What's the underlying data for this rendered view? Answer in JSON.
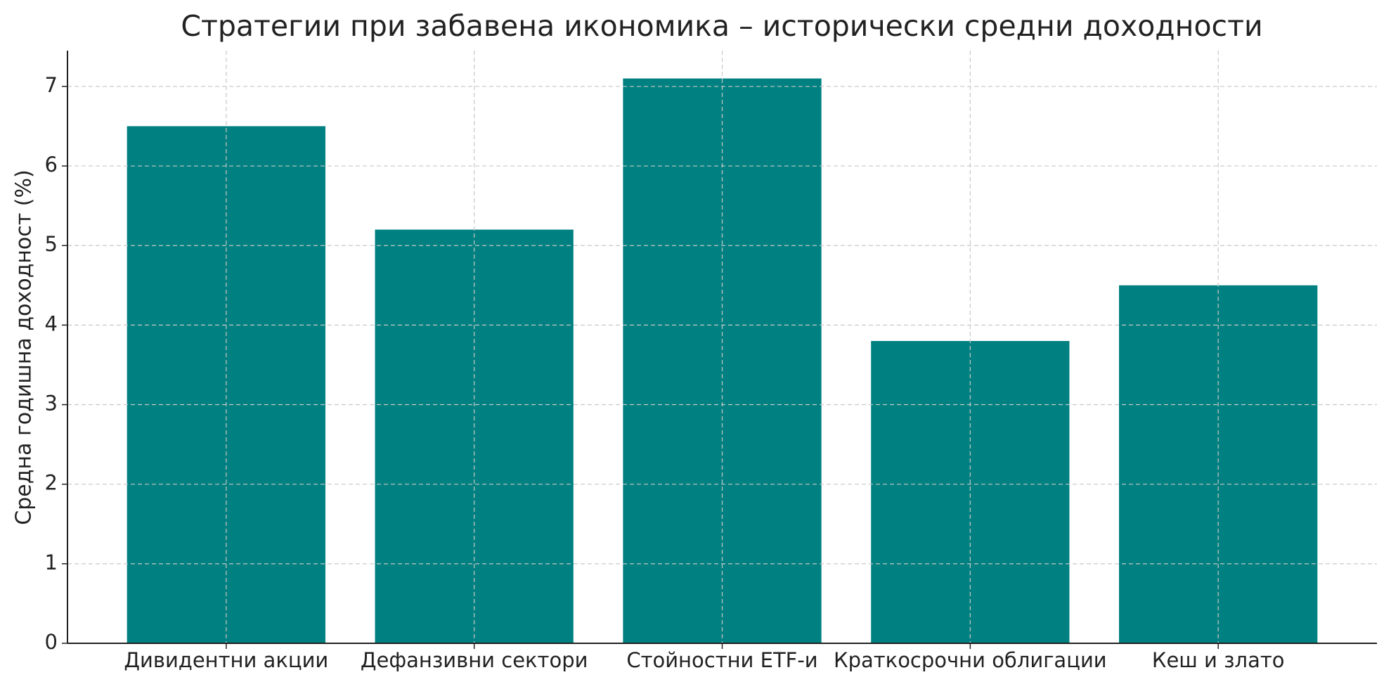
{
  "chart_data": {
    "type": "bar",
    "title": "Стратегии при забавена икономика – исторически средни доходности",
    "y_label": "Средна годишна доходност (%)",
    "categories": [
      "Дивидентни акции",
      "Дефанзивни сектори",
      "Стойностни ETF-и",
      "Краткосрочни облигации",
      "Кеш и злато"
    ],
    "values": [
      6.5,
      5.2,
      7.1,
      3.8,
      4.5
    ],
    "color": "#008080",
    "ylim": [
      0,
      7.45
    ],
    "yticks": [
      0,
      1,
      2,
      3,
      4,
      5,
      6,
      7
    ],
    "grid": true
  }
}
